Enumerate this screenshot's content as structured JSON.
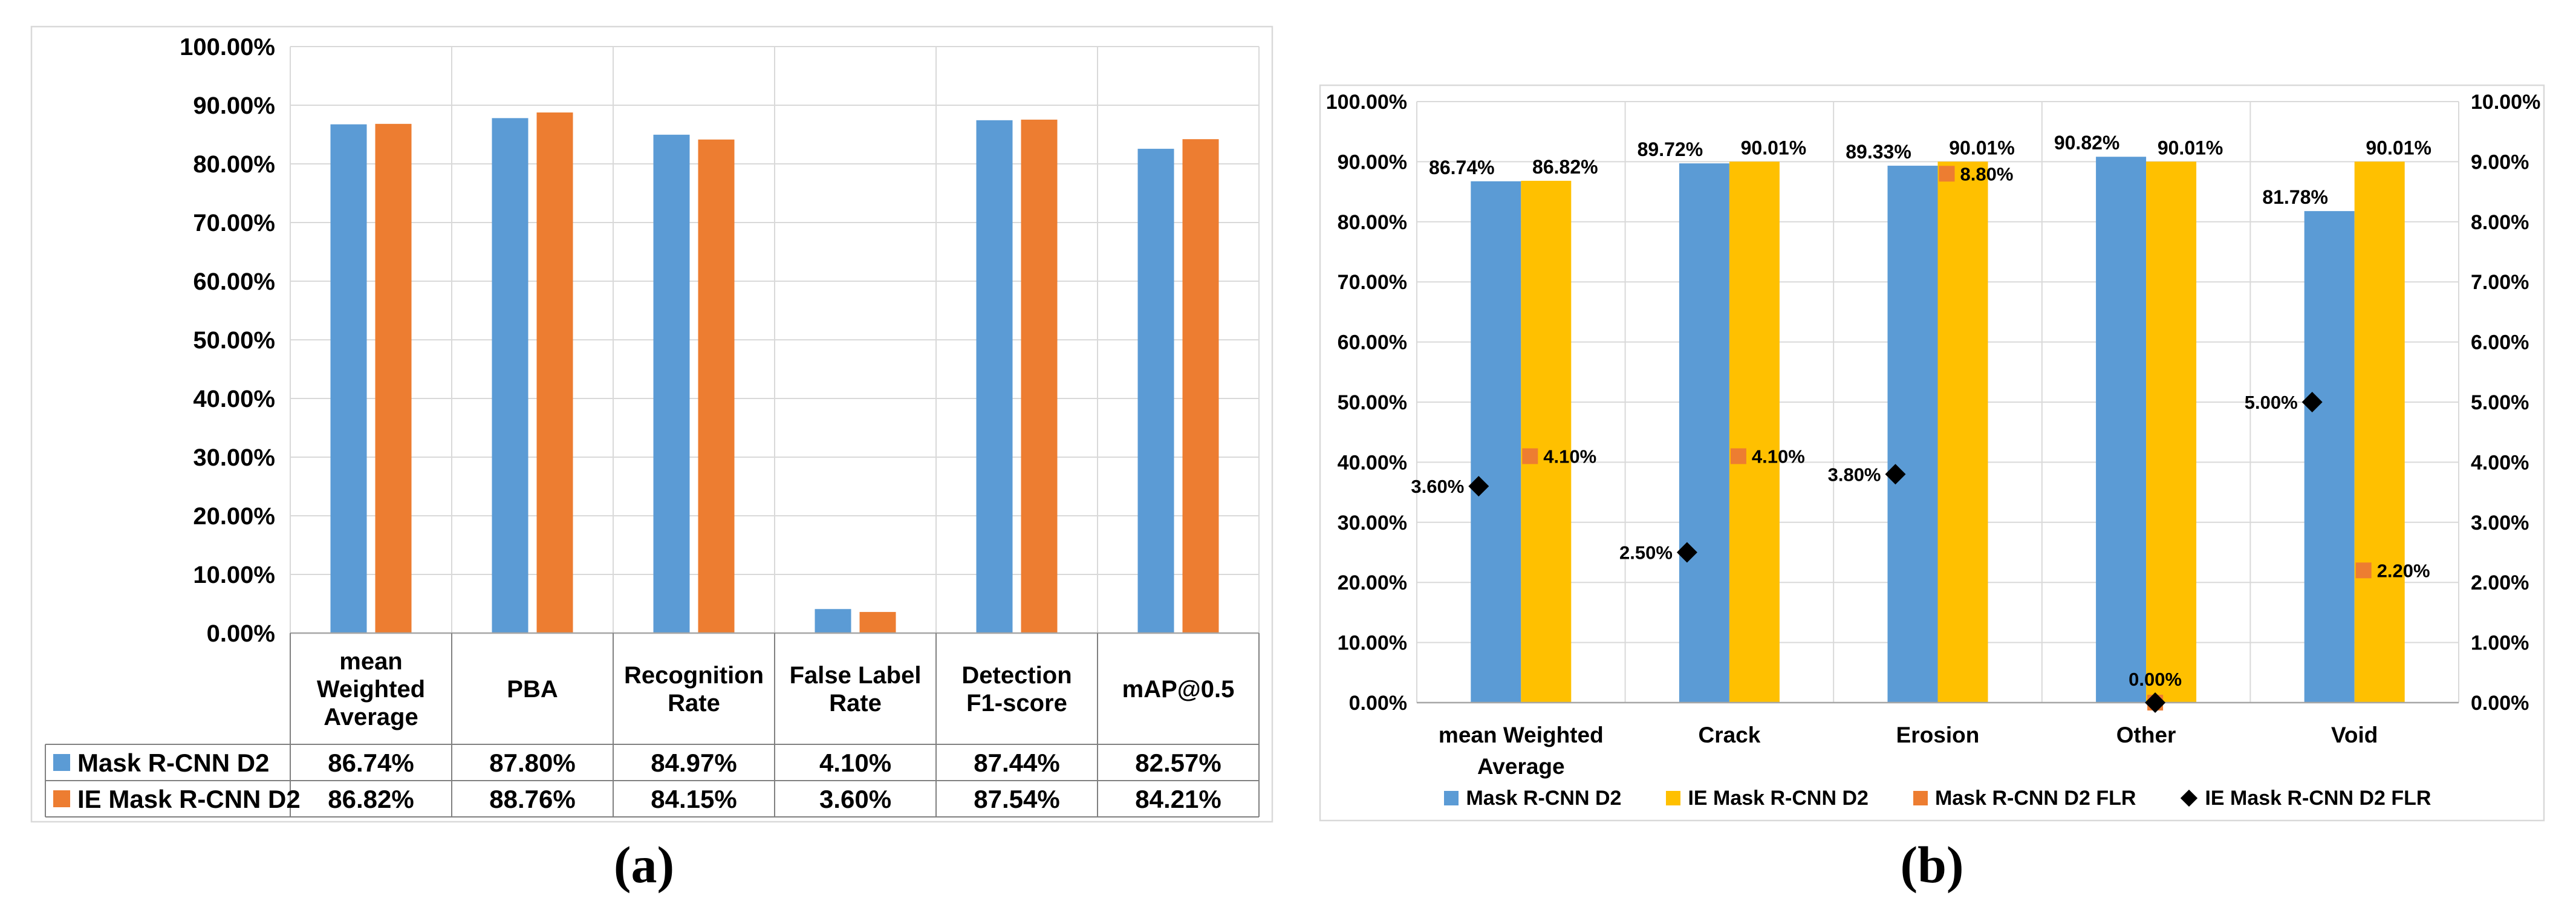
{
  "figure": {
    "caption_a": "(a)",
    "caption_b": "(b)"
  },
  "colors": {
    "blue": "#5B9BD5",
    "orange": "#ED7D31",
    "yellow": "#FFC000",
    "black": "#000000",
    "gridline": "#D9D9D9",
    "chart_border": "#D9D9D9",
    "axis_line": "#A6A6A6",
    "table_line": "#808080",
    "text": "#000000"
  },
  "chart_data": [
    {
      "type": "bar",
      "panel": "a",
      "categories": [
        "mean Weighted Average",
        "PBA",
        "Recognition Rate",
        "False Label Rate",
        "Detection F1-score",
        "mAP@0.5"
      ],
      "category_lines": [
        [
          "mean",
          "Weighted",
          "Average"
        ],
        [
          "PBA"
        ],
        [
          "Recognition",
          "Rate"
        ],
        [
          "False Label",
          "Rate"
        ],
        [
          "Detection",
          "F1-score"
        ],
        [
          "mAP@0.5"
        ]
      ],
      "series": [
        {
          "name": "Mask R-CNN D2",
          "color_key": "blue",
          "values": [
            86.74,
            87.8,
            84.97,
            4.1,
            87.44,
            82.57
          ],
          "value_labels": [
            "86.74%",
            "87.80%",
            "84.97%",
            "4.10%",
            "87.44%",
            "82.57%"
          ]
        },
        {
          "name": "IE Mask R-CNN D2",
          "color_key": "orange",
          "values": [
            86.82,
            88.76,
            84.15,
            3.6,
            87.54,
            84.21
          ],
          "value_labels": [
            "86.82%",
            "88.76%",
            "84.15%",
            "3.60%",
            "87.54%",
            "84.21%"
          ]
        }
      ],
      "y_axis": {
        "min": 0,
        "max": 100,
        "step": 10,
        "tick_labels": [
          "0.00%",
          "10.00%",
          "20.00%",
          "30.00%",
          "40.00%",
          "50.00%",
          "60.00%",
          "70.00%",
          "80.00%",
          "90.00%",
          "100.00%"
        ]
      },
      "legend_position": "table-left-column",
      "grid": true
    },
    {
      "type": "bar+scatter",
      "panel": "b",
      "categories": [
        "mean Weighted Average",
        "Crack",
        "Erosion",
        "Other",
        "Void"
      ],
      "category_lines": [
        [
          "mean Weighted",
          "Average"
        ],
        [
          "Crack"
        ],
        [
          "Erosion"
        ],
        [
          "Other"
        ],
        [
          "Void"
        ]
      ],
      "bar_series": [
        {
          "name": "Mask R-CNN D2",
          "color_key": "blue",
          "axis": "left",
          "values": [
            86.74,
            89.72,
            89.33,
            90.82,
            81.78
          ],
          "value_labels": [
            "86.74%",
            "89.72%",
            "89.33%",
            "90.82%",
            "81.78%"
          ]
        },
        {
          "name": "IE Mask R-CNN D2",
          "color_key": "yellow",
          "axis": "left",
          "values": [
            86.82,
            90.01,
            90.01,
            90.01,
            90.01
          ],
          "value_labels": [
            "86.82%",
            "90.01%",
            "90.01%",
            "90.01%",
            "90.01%"
          ]
        }
      ],
      "marker_series": [
        {
          "name": "Mask R-CNN D2 FLR",
          "marker": "square",
          "color_key": "orange",
          "axis": "right",
          "values": [
            4.1,
            4.1,
            8.8,
            0.0,
            2.2
          ],
          "value_labels": [
            "4.10%",
            "4.10%",
            "8.80%",
            "",
            "2.20%"
          ]
        },
        {
          "name": "IE Mask R-CNN D2 FLR",
          "marker": "diamond",
          "color_key": "black",
          "axis": "right",
          "values": [
            3.6,
            2.5,
            3.8,
            0.0,
            5.0
          ],
          "value_labels": [
            "3.60%",
            "2.50%",
            "3.80%",
            "0.00%",
            "5.00%"
          ]
        }
      ],
      "y_axis_left": {
        "min": 0,
        "max": 100,
        "step": 10,
        "tick_labels": [
          "0.00%",
          "10.00%",
          "20.00%",
          "30.00%",
          "40.00%",
          "50.00%",
          "60.00%",
          "70.00%",
          "80.00%",
          "90.00%",
          "100.00%"
        ]
      },
      "y_axis_right": {
        "min": 0,
        "max": 10,
        "step": 1,
        "tick_labels": [
          "0.00%",
          "1.00%",
          "2.00%",
          "3.00%",
          "4.00%",
          "5.00%",
          "6.00%",
          "7.00%",
          "8.00%",
          "9.00%",
          "10.00%"
        ]
      },
      "legend": [
        {
          "label": "Mask R-CNN D2",
          "swatch": "square",
          "color_key": "blue"
        },
        {
          "label": "IE Mask R-CNN D2",
          "swatch": "square",
          "color_key": "yellow"
        },
        {
          "label": "Mask R-CNN D2 FLR",
          "swatch": "square",
          "color_key": "orange"
        },
        {
          "label": "IE Mask R-CNN D2 FLR",
          "swatch": "diamond",
          "color_key": "black"
        }
      ],
      "grid": true,
      "legend_position": "bottom"
    }
  ]
}
